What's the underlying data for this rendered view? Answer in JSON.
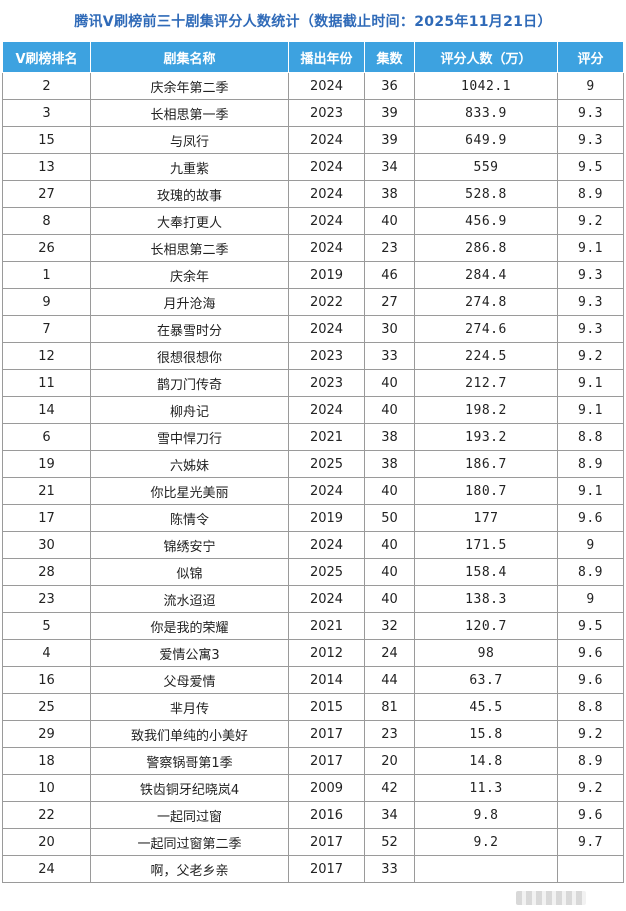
{
  "title": "腾讯V刷榜前三十剧集评分人数统计（数据截止时间：2025年11月21日）",
  "colors": {
    "header_bg": "#3da2e0",
    "header_text": "#ffffff",
    "title_text": "#2f6ab8",
    "grid": "#9a9a9a"
  },
  "columns": [
    "V刷榜排名",
    "剧集名称",
    "播出年份",
    "集数",
    "评分人数（万）",
    "评分"
  ],
  "rows": [
    {
      "rank": "2",
      "name": "庆余年第二季",
      "year": "2024",
      "episodes": "36",
      "raters": "1042.1",
      "score": "9"
    },
    {
      "rank": "3",
      "name": "长相思第一季",
      "year": "2023",
      "episodes": "39",
      "raters": "833.9",
      "score": "9.3"
    },
    {
      "rank": "15",
      "name": "与凤行",
      "year": "2024",
      "episodes": "39",
      "raters": "649.9",
      "score": "9.3"
    },
    {
      "rank": "13",
      "name": "九重紫",
      "year": "2024",
      "episodes": "34",
      "raters": "559",
      "score": "9.5"
    },
    {
      "rank": "27",
      "name": "玫瑰的故事",
      "year": "2024",
      "episodes": "38",
      "raters": "528.8",
      "score": "8.9"
    },
    {
      "rank": "8",
      "name": "大奉打更人",
      "year": "2024",
      "episodes": "40",
      "raters": "456.9",
      "score": "9.2"
    },
    {
      "rank": "26",
      "name": "长相思第二季",
      "year": "2024",
      "episodes": "23",
      "raters": "286.8",
      "score": "9.1"
    },
    {
      "rank": "1",
      "name": "庆余年",
      "year": "2019",
      "episodes": "46",
      "raters": "284.4",
      "score": "9.3"
    },
    {
      "rank": "9",
      "name": "月升沧海",
      "year": "2022",
      "episodes": "27",
      "raters": "274.8",
      "score": "9.3"
    },
    {
      "rank": "7",
      "name": "在暴雪时分",
      "year": "2024",
      "episodes": "30",
      "raters": "274.6",
      "score": "9.3"
    },
    {
      "rank": "12",
      "name": "很想很想你",
      "year": "2023",
      "episodes": "33",
      "raters": "224.5",
      "score": "9.2"
    },
    {
      "rank": "11",
      "name": "鹊刀门传奇",
      "year": "2023",
      "episodes": "40",
      "raters": "212.7",
      "score": "9.1"
    },
    {
      "rank": "14",
      "name": "柳舟记",
      "year": "2024",
      "episodes": "40",
      "raters": "198.2",
      "score": "9.1"
    },
    {
      "rank": "6",
      "name": "雪中悍刀行",
      "year": "2021",
      "episodes": "38",
      "raters": "193.2",
      "score": "8.8"
    },
    {
      "rank": "19",
      "name": "六姊妹",
      "year": "2025",
      "episodes": "38",
      "raters": "186.7",
      "score": "8.9"
    },
    {
      "rank": "21",
      "name": "你比星光美丽",
      "year": "2024",
      "episodes": "40",
      "raters": "180.7",
      "score": "9.1"
    },
    {
      "rank": "17",
      "name": "陈情令",
      "year": "2019",
      "episodes": "50",
      "raters": "177",
      "score": "9.6"
    },
    {
      "rank": "30",
      "name": "锦绣安宁",
      "year": "2024",
      "episodes": "40",
      "raters": "171.5",
      "score": "9"
    },
    {
      "rank": "28",
      "name": "似锦",
      "year": "2025",
      "episodes": "40",
      "raters": "158.4",
      "score": "8.9"
    },
    {
      "rank": "23",
      "name": "流水迢迢",
      "year": "2024",
      "episodes": "40",
      "raters": "138.3",
      "score": "9"
    },
    {
      "rank": "5",
      "name": "你是我的荣耀",
      "year": "2021",
      "episodes": "32",
      "raters": "120.7",
      "score": "9.5"
    },
    {
      "rank": "4",
      "name": "爱情公寓3",
      "year": "2012",
      "episodes": "24",
      "raters": "98",
      "score": "9.6"
    },
    {
      "rank": "16",
      "name": "父母爱情",
      "year": "2014",
      "episodes": "44",
      "raters": "63.7",
      "score": "9.6"
    },
    {
      "rank": "25",
      "name": "芈月传",
      "year": "2015",
      "episodes": "81",
      "raters": "45.5",
      "score": "8.8"
    },
    {
      "rank": "29",
      "name": "致我们单纯的小美好",
      "year": "2017",
      "episodes": "23",
      "raters": "15.8",
      "score": "9.2"
    },
    {
      "rank": "18",
      "name": "警察锅哥第1季",
      "year": "2017",
      "episodes": "20",
      "raters": "14.8",
      "score": "8.9"
    },
    {
      "rank": "10",
      "name": "铁齿铜牙纪晓岚4",
      "year": "2009",
      "episodes": "42",
      "raters": "11.3",
      "score": "9.2"
    },
    {
      "rank": "22",
      "name": "一起同过窗",
      "year": "2016",
      "episodes": "34",
      "raters": "9.8",
      "score": "9.6"
    },
    {
      "rank": "20",
      "name": "一起同过窗第二季",
      "year": "2017",
      "episodes": "52",
      "raters": "9.2",
      "score": "9.7"
    },
    {
      "rank": "24",
      "name": "啊，父老乡亲",
      "year": "2017",
      "episodes": "33",
      "raters": "",
      "score": ""
    }
  ]
}
